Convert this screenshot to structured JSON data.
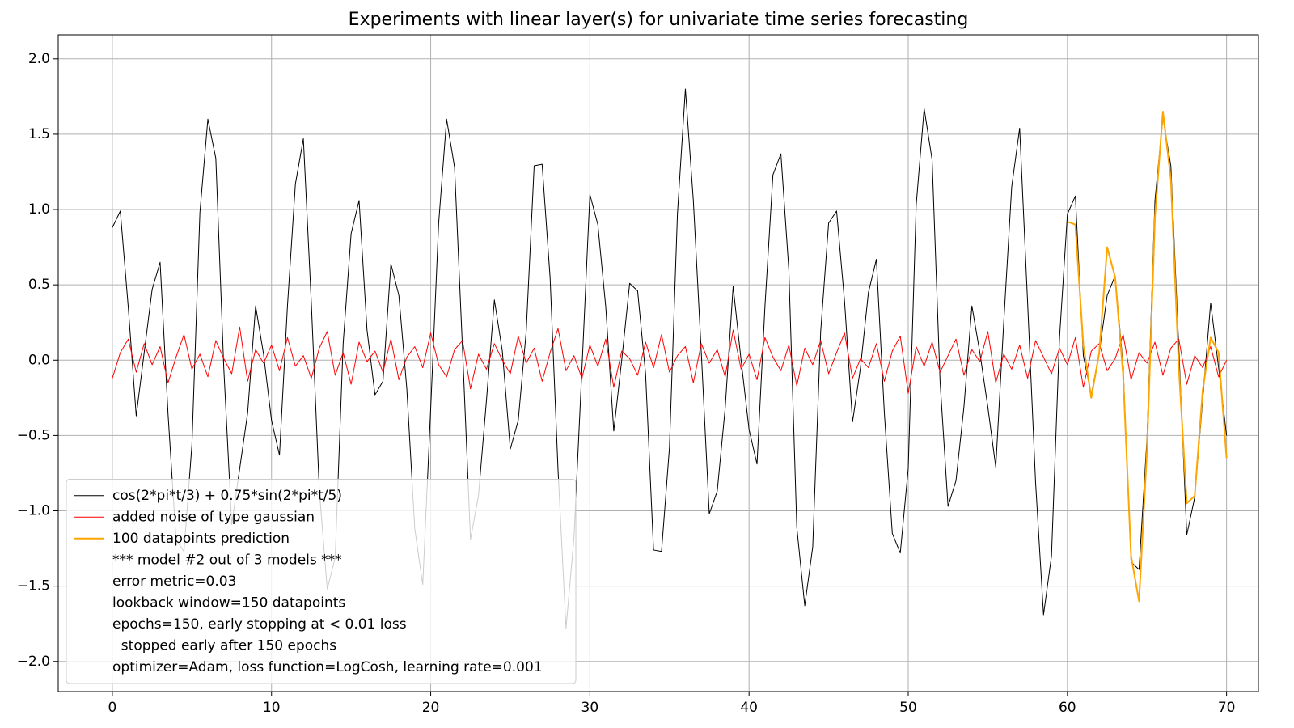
{
  "chart_data": {
    "type": "line",
    "title": "Experiments with linear layer(s) for univariate time series forecasting",
    "x": [
      0,
      0.5,
      1,
      1.5,
      2,
      2.5,
      3,
      3.5,
      4,
      4.5,
      5,
      5.5,
      6,
      6.5,
      7,
      7.5,
      8,
      8.5,
      9,
      9.5,
      10,
      10.5,
      11,
      11.5,
      12,
      12.5,
      13,
      13.5,
      14,
      14.5,
      15,
      15.5,
      16,
      16.5,
      17,
      17.5,
      18,
      18.5,
      19,
      19.5,
      20,
      20.5,
      21,
      21.5,
      22,
      22.5,
      23,
      23.5,
      24,
      24.5,
      25,
      25.5,
      26,
      26.5,
      27,
      27.5,
      28,
      28.5,
      29,
      29.5,
      30,
      30.5,
      31,
      31.5,
      32,
      32.5,
      33,
      33.5,
      34,
      34.5,
      35,
      35.5,
      36,
      36.5,
      37,
      37.5,
      38,
      38.5,
      39,
      39.5,
      40,
      40.5,
      41,
      41.5,
      42,
      42.5,
      43,
      43.5,
      44,
      44.5,
      45,
      45.5,
      46,
      46.5,
      47,
      47.5,
      48,
      48.5,
      49,
      49.5,
      50,
      50.5,
      51,
      51.5,
      52,
      52.5,
      53,
      53.5,
      54,
      54.5,
      55,
      55.5,
      56,
      56.5,
      57,
      57.5,
      58,
      58.5,
      59,
      59.5,
      60,
      60.5,
      61,
      61.5,
      62,
      62.5,
      63,
      63.5,
      64,
      64.5,
      65,
      65.5,
      66,
      66.5,
      67,
      67.5,
      68,
      68.5,
      69,
      69.5,
      70
    ],
    "series": [
      {
        "name": "cos(2*pi*t/3) + 0.75*sin(2*pi*t/5)",
        "color": "#000000",
        "width": 1,
        "values": [
          0.88,
          0.99,
          0.35,
          -0.37,
          0.05,
          0.47,
          0.65,
          -0.36,
          -1.19,
          -1.27,
          -0.56,
          0.98,
          1.6,
          1.34,
          -0.05,
          -1.09,
          -0.72,
          -0.35,
          0.36,
          0.04,
          -0.4,
          -0.63,
          0.36,
          1.17,
          1.47,
          0.38,
          -0.86,
          -1.52,
          -1.31,
          0.11,
          0.84,
          1.06,
          0.2,
          -0.23,
          -0.14,
          0.64,
          0.43,
          -0.19,
          -1.12,
          -1.49,
          -0.32,
          0.91,
          1.6,
          1.28,
          0.07,
          -1.19,
          -0.9,
          -0.27,
          0.4,
          0.06,
          -0.59,
          -0.4,
          0.19,
          1.29,
          1.3,
          0.55,
          -0.73,
          -1.78,
          -1.18,
          -0.06,
          1.1,
          0.9,
          0.35,
          -0.47,
          0.0,
          0.51,
          0.46,
          -0.09,
          -1.26,
          -1.27,
          -0.58,
          0.97,
          1.8,
          1.06,
          0.05,
          -1.02,
          -0.87,
          -0.32,
          0.49,
          0.0,
          -0.46,
          -0.69,
          0.36,
          1.23,
          1.37,
          0.6,
          -1.11,
          -1.63,
          -1.24,
          0.19,
          0.91,
          0.99,
          0.39,
          -0.41,
          -0.05,
          0.45,
          0.67,
          -0.35,
          -1.15,
          -1.28,
          -0.72,
          1.03,
          1.67,
          1.33,
          -0.14,
          -0.97,
          -0.8,
          -0.31,
          0.36,
          0.05,
          -0.31,
          -0.71,
          0.25,
          1.15,
          1.54,
          0.38,
          -0.81,
          -1.69,
          -1.3,
          0.14,
          0.97,
          1.09,
          0.03,
          -0.23,
          0.05,
          0.43,
          0.56,
          -0.04,
          -1.34,
          -1.39,
          -0.52,
          1.06,
          1.61,
          1.29,
          0.08,
          -1.16,
          -0.91,
          -0.26,
          0.38,
          -0.05,
          -0.5
        ]
      },
      {
        "name": "added noise of type gaussian",
        "color": "#ff0000",
        "width": 1,
        "values": [
          -0.12,
          0.05,
          0.14,
          -0.08,
          0.11,
          -0.03,
          0.09,
          -0.15,
          0.02,
          0.17,
          -0.06,
          0.04,
          -0.11,
          0.13,
          0.01,
          -0.09,
          0.22,
          -0.14,
          0.07,
          -0.02,
          0.1,
          -0.07,
          0.15,
          -0.04,
          0.03,
          -0.12,
          0.08,
          0.19,
          -0.1,
          0.05,
          -0.16,
          0.12,
          -0.01,
          0.06,
          -0.08,
          0.14,
          -0.13,
          0.02,
          0.09,
          -0.05,
          0.18,
          -0.03,
          -0.11,
          0.07,
          0.13,
          -0.19,
          0.04,
          -0.06,
          0.11,
          0.0,
          -0.09,
          0.16,
          -0.02,
          0.08,
          -0.14,
          0.05,
          0.21,
          -0.07,
          0.03,
          -0.12,
          0.1,
          -0.04,
          0.14,
          -0.18,
          0.06,
          0.01,
          -0.1,
          0.12,
          -0.05,
          0.17,
          -0.08,
          0.03,
          0.09,
          -0.15,
          0.11,
          -0.02,
          0.07,
          -0.11,
          0.2,
          -0.06,
          0.04,
          -0.13,
          0.15,
          0.02,
          -0.07,
          0.1,
          -0.17,
          0.08,
          -0.03,
          0.13,
          -0.09,
          0.05,
          0.18,
          -0.12,
          0.01,
          -0.05,
          0.11,
          -0.14,
          0.06,
          0.16,
          -0.22,
          0.09,
          -0.04,
          0.12,
          -0.08,
          0.03,
          0.14,
          -0.1,
          0.07,
          -0.01,
          0.19,
          -0.15,
          0.04,
          -0.06,
          0.1,
          -0.12,
          0.13,
          0.02,
          -0.09,
          0.08,
          -0.03,
          0.15,
          -0.18,
          0.06,
          0.11,
          -0.07,
          0.01,
          0.17,
          -0.13,
          0.05,
          -0.02,
          0.12,
          -0.1,
          0.08,
          0.14,
          -0.16,
          0.03,
          -0.05,
          0.09,
          -0.11,
          0.0
        ]
      },
      {
        "name": "100 datapoints prediction",
        "color": "#ffa500",
        "width": 2,
        "x": [
          60,
          60.5,
          61,
          61.5,
          62,
          62.5,
          63,
          63.5,
          64,
          64.5,
          65,
          65.5,
          66,
          66.5,
          67,
          67.5,
          68,
          68.5,
          69,
          69.5,
          70
        ],
        "values": [
          0.92,
          0.9,
          0.1,
          -0.25,
          0.05,
          0.75,
          0.55,
          -0.1,
          -1.3,
          -1.6,
          -0.6,
          0.95,
          1.65,
          1.2,
          -0.05,
          -0.95,
          -0.9,
          -0.2,
          0.15,
          0.05,
          -0.65
        ]
      }
    ],
    "legend_notes": [
      "*** model #2 out of 3 models ***",
      "error metric=0.03",
      "lookback window=150 datapoints",
      "epochs=150, early stopping at < 0.01 loss",
      "  stopped early after 150 epochs",
      "optimizer=Adam, loss function=LogCosh, learning rate=0.001"
    ],
    "legend_position": "lower left",
    "xlim": [
      -3.4,
      72.0
    ],
    "ylim": [
      -2.2,
      2.16
    ],
    "xticks": [
      0,
      10,
      20,
      30,
      40,
      50,
      60,
      70
    ],
    "yticks": [
      {
        "value": -2,
        "label": "−2.0"
      },
      {
        "value": -1.5,
        "label": "−1.5"
      },
      {
        "value": -1,
        "label": "−1.0"
      },
      {
        "value": -0.5,
        "label": "−0.5"
      },
      {
        "value": 0,
        "label": "0.0"
      },
      0.5,
      {
        "value": 1,
        "label": "1.0"
      },
      1.5,
      {
        "value": 2,
        "label": "2.0"
      }
    ],
    "grid": true
  }
}
